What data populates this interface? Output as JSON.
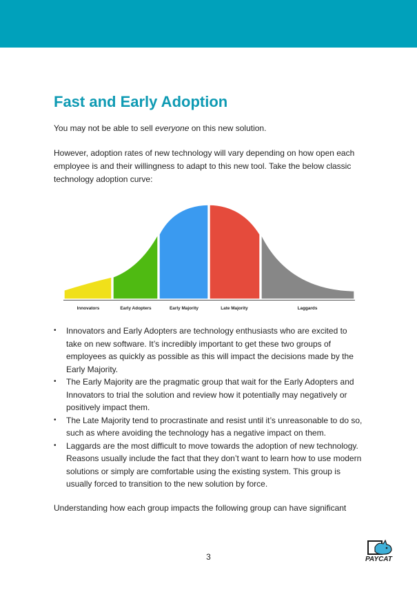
{
  "header": {
    "band_color": "#00a1bb"
  },
  "title": "Fast and Early Adoption",
  "intro": {
    "p1_before": "You may not be able to sell ",
    "p1_emph": "everyone",
    "p1_after": " on this new solution.",
    "p2": "However, adoption rates of new technology will vary depending on how open each employee is and their willingness to adapt to this new tool. Take the below classic technology adoption curve:"
  },
  "diagram": {
    "segments": [
      {
        "label": "Innovators",
        "color": "#f0e01a"
      },
      {
        "label": "Early Adopters",
        "color": "#4fba12"
      },
      {
        "label": "Early Majority",
        "color": "#3a9af0"
      },
      {
        "label": "Late Majority",
        "color": "#e54b3c"
      },
      {
        "label": "Laggards",
        "color": "#878787"
      }
    ]
  },
  "bullets": [
    "Innovators and Early Adopters are technology enthusiasts who are excited to take on new software. It’s incredibly important to get these two groups of employees as quickly as possible as this will impact the decisions made by the Early Majority.",
    "The Early Majority are the pragmatic group that wait for the Early Adopters and Innovators to trial the solution and review how it potentially may negatively or positively impact them.",
    "The Late Majority tend to procrastinate and resist until it’s unreasonable to do so, such as where avoiding the technology has a negative impact on them.",
    "Laggards are the most difficult to move towards the adoption of new technology. Reasons usually include the fact that they don’t want to learn how to use modern solutions or simply are comfortable using the existing system. This group is usually forced to transition to the new solution by force."
  ],
  "closing": "Understanding how each group impacts the following group can have significant",
  "page_number": "3",
  "logo": {
    "text": "PAYCAT",
    "icon": "paycat-cat-logo-icon"
  }
}
